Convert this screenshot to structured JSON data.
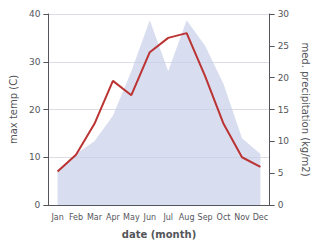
{
  "chart_data": {
    "type": "line",
    "xlabel": "date (month)",
    "ylabel": "max temp (C)",
    "y2label": "med. precipitation (kg/m2)",
    "categories": [
      "Jan",
      "Feb",
      "Mar",
      "Apr",
      "May",
      "Jun",
      "Jul",
      "Aug",
      "Sep",
      "Oct",
      "Nov",
      "Dec"
    ],
    "series": [
      {
        "type": "area",
        "axis": "y2",
        "color": "#c8cfe8",
        "values": [
          5.5,
          8,
          10,
          14,
          21,
          29,
          21,
          29,
          25,
          19,
          10.5,
          8
        ]
      },
      {
        "type": "line",
        "color": "#bb3333",
        "values": [
          7,
          10.5,
          17,
          26,
          23,
          32,
          35,
          36,
          27,
          17,
          10,
          8
        ]
      }
    ],
    "ylim": [
      0,
      40
    ],
    "yticks": [
      0,
      10,
      20,
      30,
      40
    ],
    "y2lim": [
      0,
      30
    ],
    "y2ticks": [
      0,
      5,
      10,
      15,
      20,
      25,
      30
    ],
    "grid": true
  }
}
